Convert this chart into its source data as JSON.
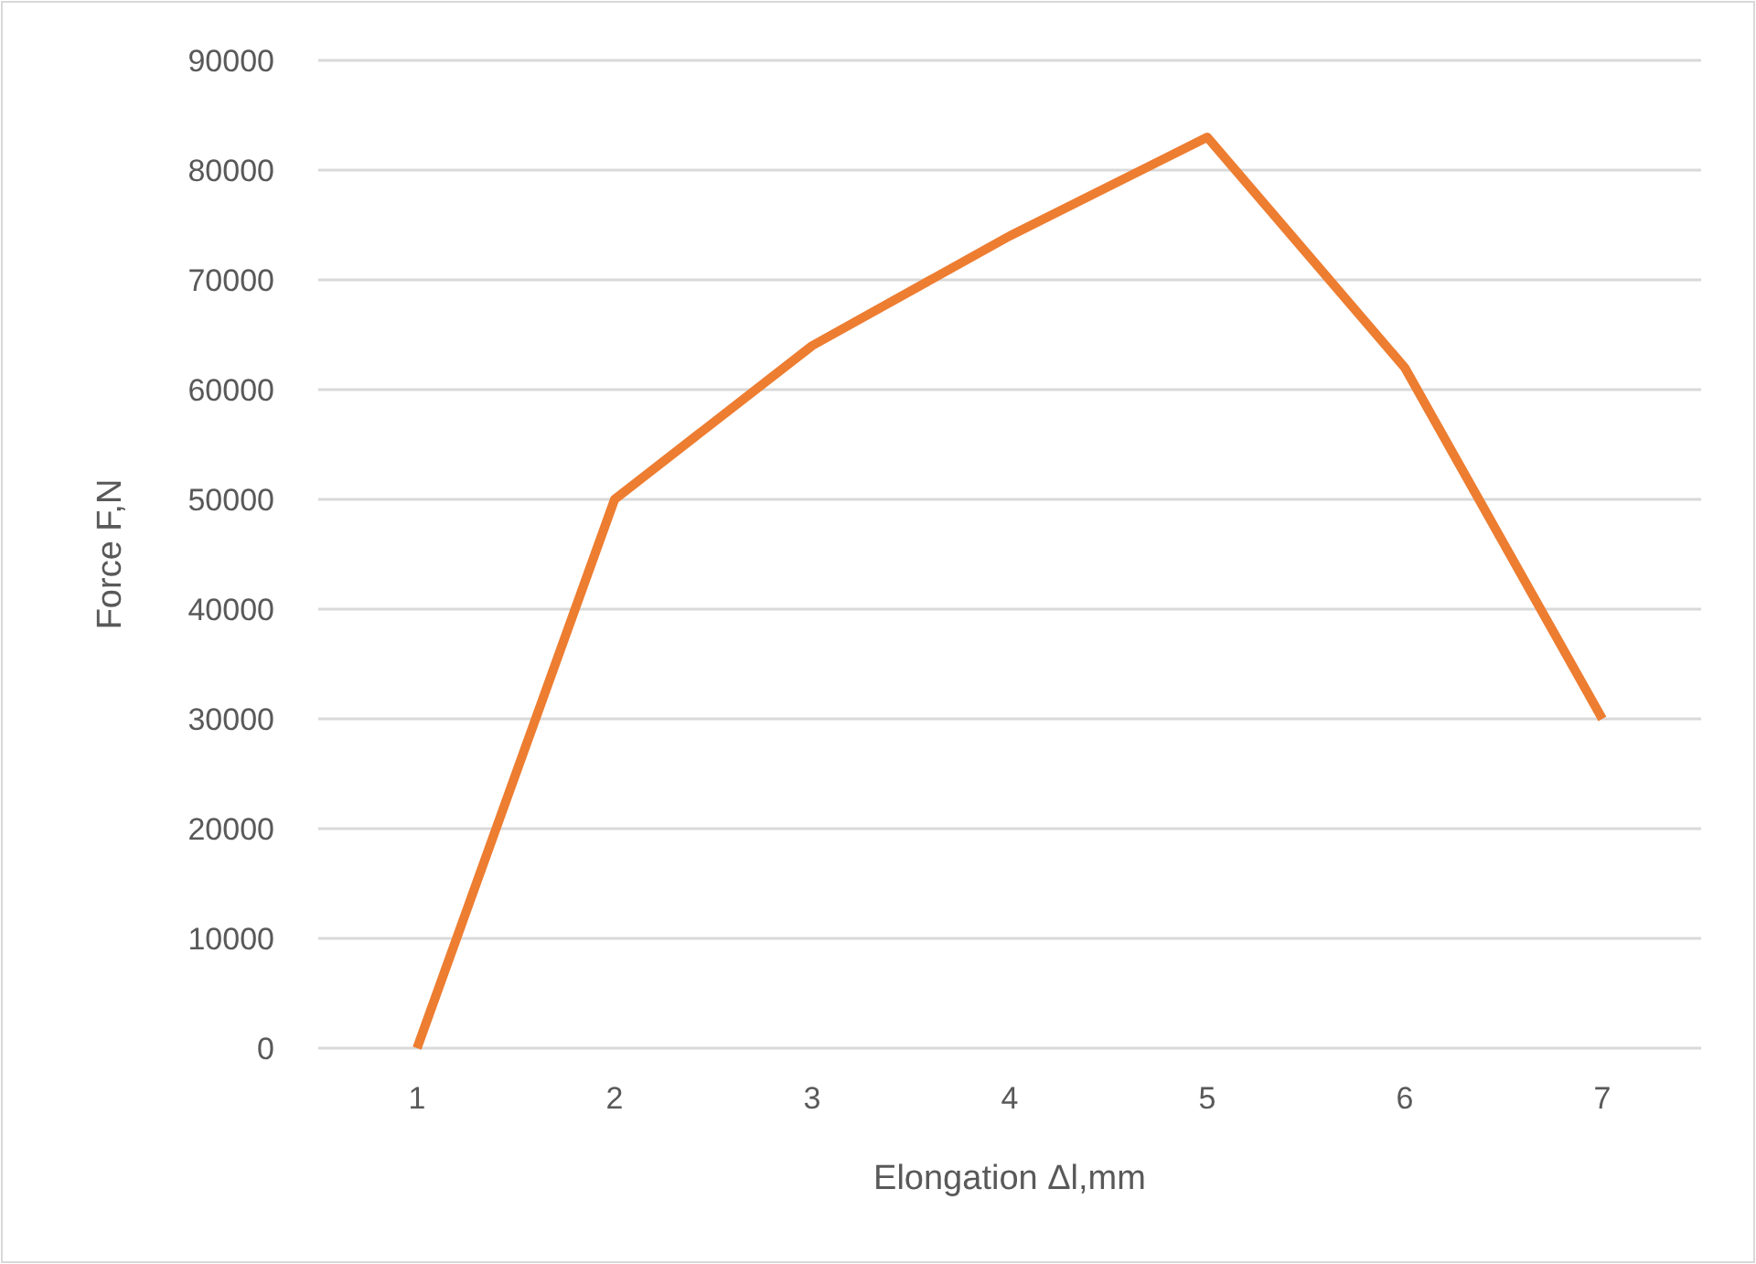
{
  "chart_data": {
    "type": "line",
    "xlabel": "Elongation Δl,mm",
    "ylabel": "Force F,N",
    "categories": [
      "1",
      "2",
      "3",
      "4",
      "5",
      "6",
      "7"
    ],
    "series": [
      {
        "color": "#ed7d31",
        "values": [
          0,
          50000,
          64000,
          74000,
          83000,
          62000,
          30000
        ]
      }
    ],
    "ylim": [
      0,
      90000
    ],
    "yticks": [
      0,
      10000,
      20000,
      30000,
      40000,
      50000,
      60000,
      70000,
      80000,
      90000
    ],
    "grid": "y",
    "marker": "none",
    "line_style": "solid"
  }
}
